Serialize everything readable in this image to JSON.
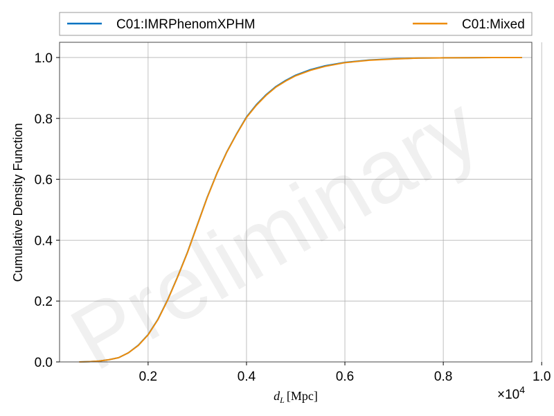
{
  "chart_data": {
    "type": "line",
    "title": "",
    "xlabel": "d_L [Mpc]",
    "xlabel_var": "d",
    "xlabel_sub": "L",
    "xlabel_unit": "[Mpc]",
    "ylabel": "Cumulative Density Function",
    "x_scale_label": "×10",
    "x_scale_exp": "4",
    "xlim": [
      200,
      9800
    ],
    "ylim": [
      0,
      1.05
    ],
    "xticks": [
      2000,
      4000,
      6000,
      8000,
      10000
    ],
    "xtick_labels": [
      "0.2",
      "0.4",
      "0.6",
      "0.8",
      "1.0"
    ],
    "yticks": [
      0,
      0.2,
      0.4,
      0.6,
      0.8,
      1.0
    ],
    "ytick_labels": [
      "0.0",
      "0.2",
      "0.4",
      "0.6",
      "0.8",
      "1.0"
    ],
    "grid": true,
    "legend_position": "top",
    "watermark": "Preliminary",
    "series": [
      {
        "name": "C01:IMRPhenomXPHM",
        "color": "#0072c1",
        "x": [
          600,
          800,
          1000,
          1200,
          1400,
          1600,
          1800,
          2000,
          2200,
          2400,
          2600,
          2800,
          3000,
          3200,
          3400,
          3600,
          3800,
          4000,
          4200,
          4400,
          4600,
          4800,
          5000,
          5300,
          5600,
          6000,
          6500,
          7000,
          7500,
          8000,
          8500,
          9000,
          9600
        ],
        "y": [
          0,
          0.001,
          0.003,
          0.007,
          0.014,
          0.03,
          0.055,
          0.09,
          0.14,
          0.205,
          0.28,
          0.36,
          0.45,
          0.54,
          0.62,
          0.69,
          0.75,
          0.805,
          0.845,
          0.878,
          0.905,
          0.925,
          0.942,
          0.96,
          0.973,
          0.984,
          0.992,
          0.996,
          0.998,
          0.999,
          0.9995,
          1.0,
          1.0
        ]
      },
      {
        "name": "C01:Mixed",
        "color": "#ed8c0b",
        "x": [
          600,
          800,
          1000,
          1200,
          1400,
          1600,
          1800,
          2000,
          2200,
          2400,
          2600,
          2800,
          3000,
          3200,
          3400,
          3600,
          3800,
          4000,
          4200,
          4400,
          4600,
          4800,
          5000,
          5300,
          5600,
          6000,
          6500,
          7000,
          7500,
          8000,
          8500,
          9000,
          9600
        ],
        "y": [
          0,
          0.001,
          0.003,
          0.007,
          0.014,
          0.03,
          0.054,
          0.089,
          0.139,
          0.204,
          0.279,
          0.359,
          0.449,
          0.539,
          0.619,
          0.689,
          0.749,
          0.803,
          0.843,
          0.876,
          0.903,
          0.923,
          0.94,
          0.958,
          0.971,
          0.983,
          0.991,
          0.995,
          0.998,
          0.999,
          0.9995,
          1.0,
          1.0
        ]
      }
    ]
  }
}
